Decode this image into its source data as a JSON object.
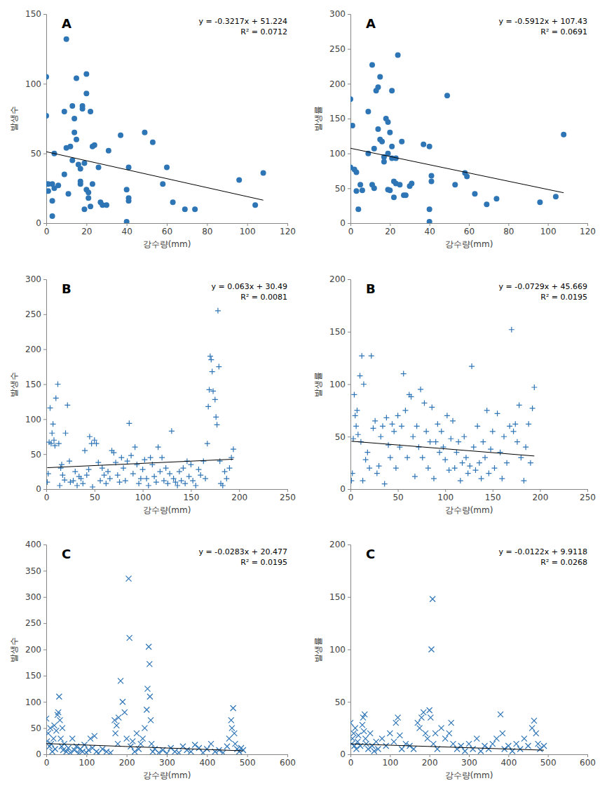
{
  "chart_data": [
    {
      "type": "scatter",
      "title": "A",
      "x_label": "강수량(mm)",
      "y_label": "발생수",
      "color": "#2e75b6",
      "marker": "circle",
      "xlim": [
        0,
        120
      ],
      "ylim": [
        0,
        150
      ],
      "xticks": [
        0,
        20,
        40,
        60,
        80,
        100,
        120
      ],
      "yticks": [
        0,
        50,
        100,
        150
      ],
      "x": [
        0,
        0,
        0,
        1,
        1,
        3,
        3,
        3,
        4,
        4,
        6,
        9,
        9,
        10,
        10,
        11,
        12,
        13,
        13,
        14,
        14,
        15,
        15,
        16,
        17,
        17,
        17,
        18,
        18,
        19,
        19,
        20,
        20,
        20,
        21,
        21,
        22,
        22,
        23,
        23,
        24,
        26,
        27,
        28,
        30,
        31,
        37,
        40,
        40,
        41,
        41,
        41,
        49,
        53,
        58,
        60,
        63,
        69,
        74,
        96,
        104,
        108
      ],
      "values": [
        105,
        77,
        28,
        28,
        23,
        28,
        16,
        5,
        25,
        50,
        27,
        35,
        80,
        54,
        132,
        21,
        55,
        84,
        45,
        75,
        65,
        60,
        104,
        42,
        39,
        30,
        28,
        82,
        84,
        43,
        10,
        107,
        24,
        93,
        22,
        18,
        12,
        80,
        28,
        55,
        56,
        40,
        15,
        13,
        13,
        52,
        63,
        24,
        1,
        18,
        16,
        40,
        65,
        58,
        28,
        40,
        15,
        10,
        10,
        31,
        13,
        36
      ],
      "trendline": {
        "slope": -0.3217,
        "intercept": 51.224,
        "equation": "y = -0.3217x + 51.224",
        "r2": 0.0712,
        "r2_label": "R² = 0.0712"
      }
    },
    {
      "type": "scatter",
      "title": "A",
      "x_label": "강수량(mm)",
      "y_label": "발생률",
      "color": "#2e75b6",
      "marker": "circle",
      "xlim": [
        0,
        120
      ],
      "ylim": [
        0,
        300
      ],
      "xticks": [
        0,
        20,
        40,
        60,
        80,
        100,
        120
      ],
      "yticks": [
        0,
        50,
        100,
        150,
        200,
        250,
        300
      ],
      "x": [
        0,
        0,
        1,
        2,
        3,
        3,
        4,
        5,
        6,
        9,
        9,
        11,
        11,
        12,
        12,
        13,
        14,
        14,
        15,
        15,
        16,
        17,
        17,
        18,
        19,
        19,
        19,
        20,
        20,
        21,
        21,
        21,
        22,
        22,
        23,
        23,
        24,
        25,
        26,
        27,
        28,
        30,
        31,
        37,
        40,
        40,
        40,
        41,
        41,
        49,
        53,
        58,
        59,
        63,
        69,
        74,
        96,
        104,
        108
      ],
      "values": [
        178,
        80,
        140,
        77,
        46,
        73,
        20,
        55,
        47,
        100,
        160,
        55,
        227,
        107,
        50,
        190,
        195,
        135,
        210,
        120,
        117,
        88,
        95,
        150,
        100,
        145,
        48,
        47,
        130,
        190,
        110,
        93,
        37,
        60,
        93,
        57,
        241,
        55,
        117,
        40,
        40,
        53,
        57,
        113,
        110,
        2,
        20,
        68,
        60,
        183,
        55,
        72,
        67,
        42,
        27,
        35,
        30,
        38,
        127
      ],
      "trendline": {
        "slope": -0.5912,
        "intercept": 107.43,
        "equation": "y = -0.5912x + 107.43",
        "r2": 0.0691,
        "r2_label": "R² = 0.0691"
      }
    },
    {
      "type": "scatter",
      "title": "B",
      "x_label": "강수량(mm)",
      "y_label": "발생수",
      "color": "#2e75b6",
      "marker": "plus",
      "xlim": [
        0,
        250
      ],
      "ylim": [
        0,
        300
      ],
      "xticks": [
        0,
        50,
        100,
        150,
        200,
        250
      ],
      "yticks": [
        0,
        50,
        100,
        150,
        200,
        250,
        300
      ],
      "x": [
        1,
        2,
        3,
        4,
        5,
        6,
        7,
        8,
        9,
        10,
        12,
        13,
        14,
        15,
        16,
        17,
        19,
        20,
        22,
        24,
        25,
        28,
        30,
        32,
        34,
        36,
        38,
        40,
        42,
        44,
        45,
        47,
        48,
        50,
        52,
        54,
        56,
        58,
        60,
        62,
        64,
        66,
        68,
        70,
        72,
        74,
        76,
        78,
        80,
        82,
        84,
        86,
        88,
        90,
        92,
        94,
        96,
        98,
        100,
        102,
        104,
        106,
        108,
        110,
        112,
        114,
        116,
        118,
        120,
        122,
        124,
        126,
        128,
        130,
        132,
        134,
        136,
        138,
        140,
        142,
        144,
        146,
        148,
        150,
        152,
        155,
        158,
        160,
        163,
        165,
        167,
        168,
        169,
        170,
        171,
        172,
        173,
        175,
        176,
        177,
        178,
        179,
        180,
        181,
        183,
        185,
        187,
        190,
        192,
        194
      ],
      "values": [
        10,
        22,
        67,
        116,
        65,
        80,
        93,
        70,
        62,
        130,
        150,
        65,
        5,
        30,
        35,
        20,
        13,
        80,
        120,
        40,
        10,
        12,
        25,
        5,
        18,
        15,
        8,
        55,
        20,
        28,
        75,
        65,
        3,
        70,
        65,
        38,
        12,
        30,
        20,
        8,
        25,
        15,
        55,
        52,
        38,
        20,
        10,
        45,
        30,
        12,
        40,
        94,
        48,
        22,
        60,
        35,
        8,
        15,
        28,
        42,
        15,
        5,
        45,
        35,
        18,
        10,
        60,
        25,
        45,
        12,
        30,
        8,
        22,
        83,
        15,
        10,
        5,
        25,
        12,
        30,
        8,
        40,
        18,
        35,
        12,
        5,
        28,
        20,
        40,
        15,
        65,
        118,
        142,
        190,
        185,
        168,
        140,
        128,
        103,
        92,
        255,
        175,
        40,
        8,
        5,
        25,
        15,
        30,
        45,
        57
      ],
      "trendline": {
        "slope": 0.063,
        "intercept": 30.49,
        "equation": "y = 0.063x + 30.49",
        "r2": 0.0081,
        "r2_label": "R² = 0.0081"
      }
    },
    {
      "type": "scatter",
      "title": "B",
      "x_label": "강수량(mm)",
      "y_label": "발생률",
      "color": "#2e75b6",
      "marker": "plus",
      "xlim": [
        0,
        250
      ],
      "ylim": [
        0,
        200
      ],
      "xticks": [
        0,
        50,
        100,
        150,
        200,
        250
      ],
      "yticks": [
        0,
        50,
        100,
        150,
        200
      ],
      "x": [
        1,
        2,
        3,
        4,
        5,
        6,
        7,
        8,
        10,
        11,
        12,
        13,
        14,
        16,
        18,
        20,
        22,
        24,
        26,
        28,
        30,
        32,
        34,
        36,
        38,
        40,
        42,
        44,
        46,
        48,
        50,
        52,
        54,
        56,
        58,
        60,
        62,
        64,
        66,
        68,
        70,
        72,
        74,
        76,
        78,
        80,
        82,
        84,
        86,
        88,
        90,
        92,
        94,
        96,
        98,
        100,
        102,
        104,
        106,
        108,
        110,
        112,
        114,
        116,
        118,
        120,
        122,
        124,
        126,
        128,
        130,
        132,
        134,
        136,
        138,
        140,
        142,
        144,
        146,
        148,
        150,
        152,
        155,
        158,
        160,
        162,
        165,
        168,
        170,
        172,
        174,
        176,
        178,
        180,
        183,
        185,
        188,
        190,
        192,
        194
      ],
      "values": [
        8,
        15,
        48,
        90,
        70,
        60,
        75,
        52,
        108,
        45,
        127,
        8,
        100,
        28,
        35,
        20,
        127,
        58,
        65,
        15,
        22,
        50,
        60,
        5,
        68,
        42,
        30,
        62,
        55,
        20,
        70,
        40,
        60,
        110,
        75,
        30,
        90,
        88,
        50,
        12,
        60,
        40,
        95,
        30,
        82,
        55,
        20,
        45,
        78,
        10,
        45,
        62,
        35,
        55,
        40,
        28,
        70,
        18,
        48,
        65,
        20,
        35,
        45,
        8,
        25,
        50,
        30,
        15,
        22,
        117,
        40,
        18,
        60,
        25,
        10,
        45,
        30,
        75,
        15,
        38,
        55,
        20,
        72,
        35,
        10,
        50,
        25,
        60,
        152,
        55,
        62,
        45,
        80,
        30,
        8,
        40,
        62,
        25,
        77,
        97
      ],
      "trendline": {
        "slope": -0.0729,
        "intercept": 45.669,
        "equation": "y = -0.0729x + 45.669",
        "r2": 0.0195,
        "r2_label": "R² = 0.0195"
      }
    },
    {
      "type": "scatter",
      "title": "C",
      "x_label": "강수량(mm)",
      "y_label": "발생수",
      "color": "#2e75b6",
      "marker": "x",
      "xlim": [
        0,
        600
      ],
      "ylim": [
        0,
        400
      ],
      "xticks": [
        0,
        100,
        200,
        300,
        400,
        500,
        600
      ],
      "yticks": [
        0,
        50,
        100,
        150,
        200,
        250,
        300,
        350,
        400
      ],
      "x": [
        0,
        2,
        5,
        8,
        10,
        12,
        15,
        18,
        20,
        22,
        25,
        28,
        30,
        32,
        34,
        36,
        38,
        40,
        42,
        45,
        50,
        55,
        60,
        65,
        70,
        75,
        80,
        85,
        90,
        95,
        100,
        105,
        110,
        115,
        120,
        125,
        130,
        140,
        150,
        160,
        170,
        172,
        175,
        178,
        180,
        185,
        190,
        195,
        200,
        205,
        207,
        210,
        215,
        220,
        225,
        230,
        235,
        240,
        245,
        250,
        252,
        255,
        257,
        258,
        260,
        262,
        265,
        270,
        280,
        290,
        300,
        310,
        320,
        330,
        340,
        350,
        360,
        370,
        380,
        390,
        400,
        410,
        420,
        430,
        440,
        450,
        455,
        460,
        462,
        465,
        468,
        470,
        475,
        480,
        485,
        490
      ],
      "values": [
        68,
        25,
        40,
        15,
        50,
        20,
        5,
        30,
        55,
        10,
        45,
        75,
        80,
        110,
        65,
        30,
        15,
        50,
        8,
        20,
        5,
        12,
        3,
        30,
        8,
        15,
        2,
        10,
        5,
        18,
        3,
        8,
        30,
        12,
        35,
        5,
        2,
        10,
        5,
        3,
        65,
        40,
        55,
        20,
        70,
        140,
        100,
        80,
        30,
        335,
        222,
        15,
        25,
        5,
        40,
        10,
        20,
        30,
        50,
        85,
        125,
        205,
        172,
        110,
        65,
        20,
        5,
        10,
        3,
        8,
        2,
        12,
        5,
        3,
        15,
        8,
        5,
        18,
        12,
        3,
        10,
        20,
        5,
        8,
        3,
        15,
        30,
        65,
        50,
        88,
        40,
        20,
        10,
        5,
        12,
        8
      ],
      "trendline": {
        "slope": -0.0283,
        "intercept": 20.477,
        "equation": "y = -0.0283x + 20.477",
        "r2": 0.0195,
        "r2_label": "R² = 0.0195"
      }
    },
    {
      "type": "scatter",
      "title": "C",
      "x_label": "강수량(mm)",
      "y_label": "발생률",
      "color": "#2e75b6",
      "marker": "x",
      "xlim": [
        0,
        600
      ],
      "ylim": [
        0,
        200
      ],
      "xticks": [
        0,
        100,
        200,
        300,
        400,
        500,
        600
      ],
      "yticks": [
        0,
        50,
        100,
        150,
        200
      ],
      "x": [
        0,
        3,
        5,
        8,
        10,
        12,
        15,
        18,
        20,
        25,
        30,
        32,
        34,
        36,
        38,
        40,
        45,
        50,
        55,
        60,
        65,
        70,
        80,
        90,
        100,
        110,
        115,
        120,
        125,
        130,
        140,
        150,
        160,
        170,
        175,
        180,
        185,
        190,
        195,
        200,
        203,
        205,
        208,
        210,
        215,
        220,
        230,
        240,
        250,
        255,
        260,
        270,
        280,
        290,
        300,
        310,
        320,
        330,
        340,
        350,
        360,
        370,
        380,
        385,
        390,
        400,
        410,
        420,
        430,
        440,
        450,
        460,
        465,
        470,
        475,
        480,
        490
      ],
      "values": [
        30,
        10,
        15,
        20,
        8,
        25,
        5,
        12,
        18,
        8,
        28,
        35,
        22,
        38,
        15,
        10,
        5,
        20,
        8,
        3,
        12,
        5,
        15,
        8,
        20,
        12,
        30,
        35,
        18,
        5,
        10,
        8,
        5,
        30,
        25,
        35,
        40,
        20,
        15,
        42,
        35,
        100,
        148,
        10,
        20,
        5,
        25,
        15,
        20,
        30,
        10,
        5,
        8,
        3,
        10,
        5,
        15,
        3,
        8,
        5,
        10,
        15,
        38,
        20,
        5,
        8,
        3,
        10,
        5,
        15,
        8,
        25,
        32,
        20,
        10,
        5,
        8
      ],
      "trendline": {
        "slope": -0.0122,
        "intercept": 9.9118,
        "equation": "y = -0.0122x + 9.9118",
        "r2": 0.0268,
        "r2_label": "R² = 0.0268"
      }
    }
  ]
}
